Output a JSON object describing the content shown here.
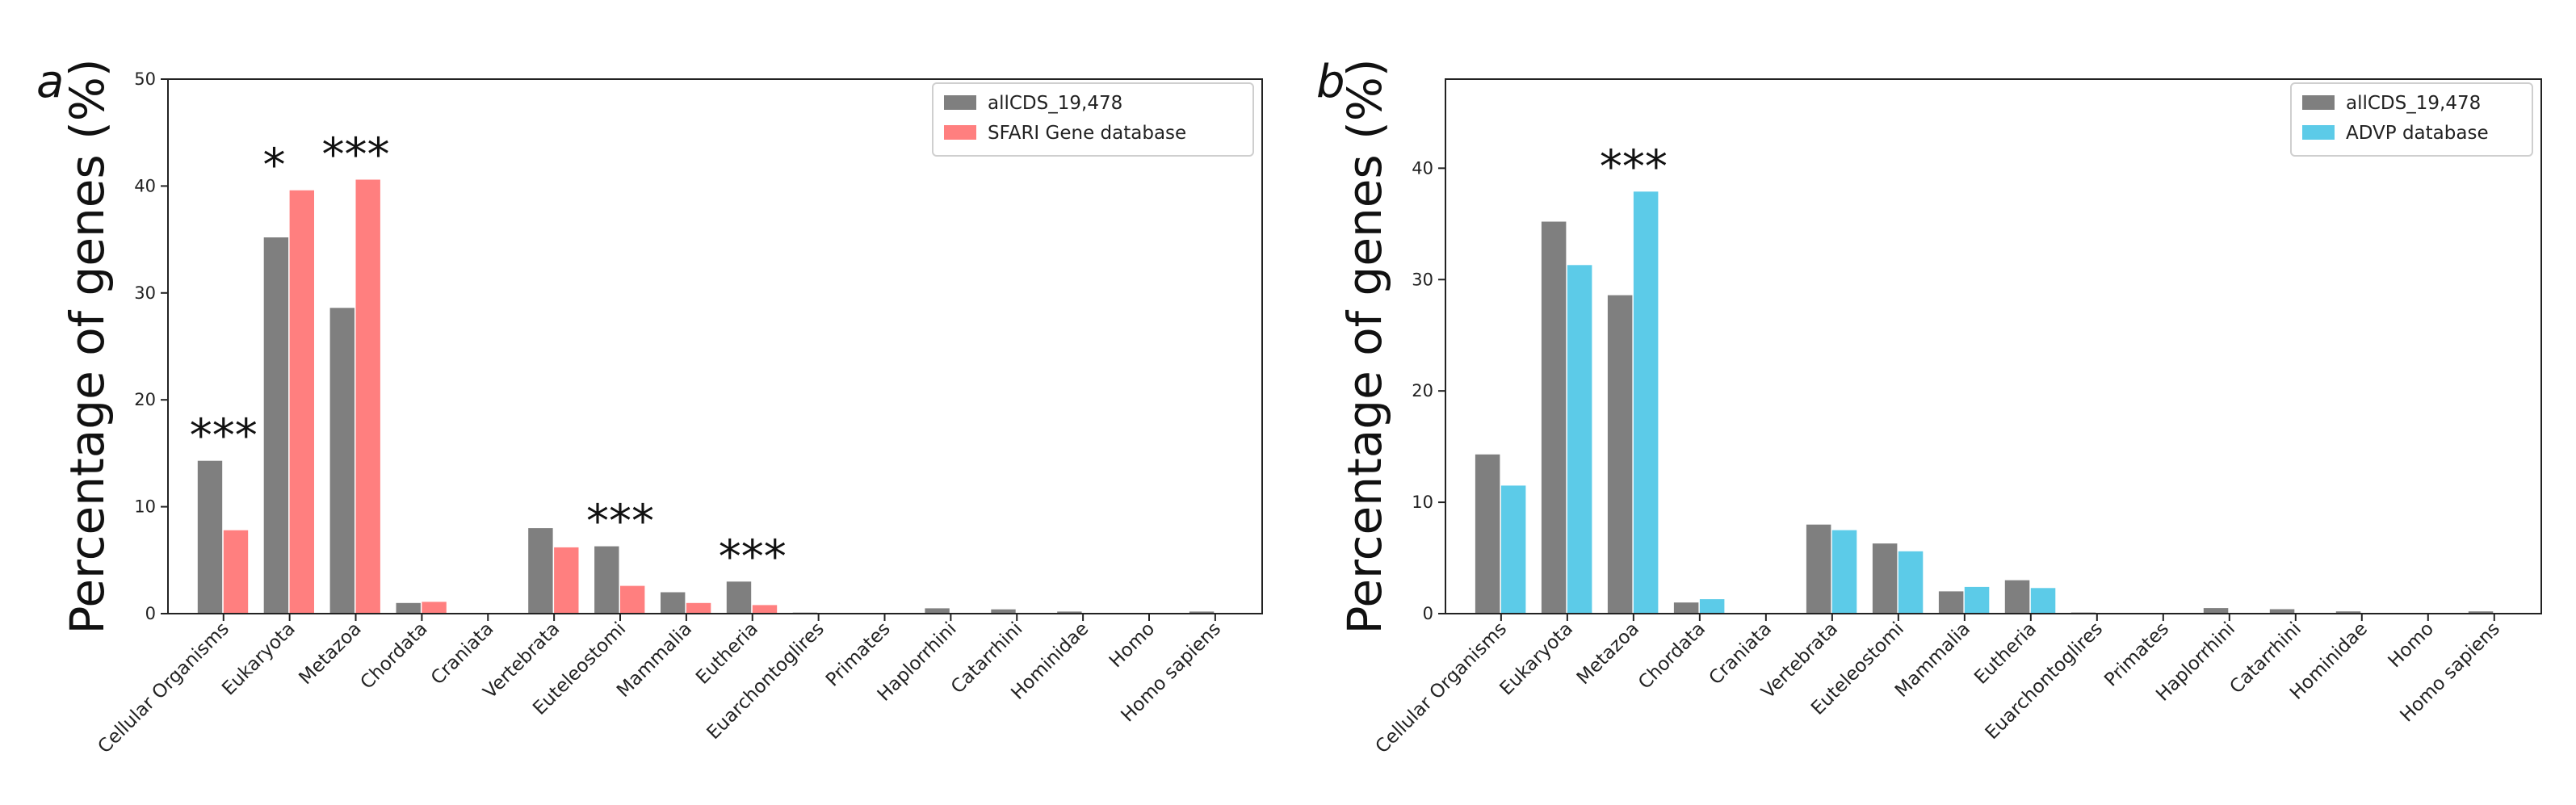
{
  "chart_data": [
    {
      "panel": "a",
      "type": "bar",
      "ylabel": "Percentage of genes (%)",
      "ylim": [
        0,
        50
      ],
      "yticks": [
        "0",
        "10",
        "20",
        "30",
        "40",
        "50"
      ],
      "categories": [
        "Cellular Organisms",
        "Eukaryota",
        "Metazoa",
        "Chordata",
        "Craniata",
        "Vertebrata",
        "Euteleostomi",
        "Mammalia",
        "Eutheria",
        "Euarchontoglires",
        "Primates",
        "Haplorrhini",
        "Catarrhini",
        "Hominidae",
        "Homo",
        "Homo sapiens"
      ],
      "series": [
        {
          "name": "allCDS_19,478",
          "color": "#7f7f7f",
          "values": [
            14.3,
            35.2,
            28.6,
            1.0,
            0.0,
            8.0,
            6.3,
            2.0,
            3.0,
            0.1,
            0.05,
            0.5,
            0.4,
            0.2,
            0.05,
            0.2
          ]
        },
        {
          "name": "SFARI Gene database",
          "color": "#ff7f7f",
          "values": [
            7.8,
            39.6,
            40.6,
            1.1,
            0.0,
            6.2,
            2.6,
            1.0,
            0.8,
            0.0,
            0.0,
            0.0,
            0.0,
            0.0,
            0.0,
            0.0
          ]
        }
      ],
      "annotations": [
        {
          "category": "Cellular Organisms",
          "text": "***"
        },
        {
          "category": "Eukaryota",
          "text": "*"
        },
        {
          "category": "Metazoa",
          "text": "***"
        },
        {
          "category": "Euteleostomi",
          "text": "***"
        },
        {
          "category": "Eutheria",
          "text": "***"
        }
      ],
      "legend": "top-right",
      "grid": false
    },
    {
      "panel": "b",
      "type": "bar",
      "ylabel": "Percentage of genes (%)",
      "ylim": [
        0,
        48
      ],
      "yticks": [
        "0",
        "10",
        "20",
        "30",
        "40"
      ],
      "categories": [
        "Cellular Organisms",
        "Eukaryota",
        "Metazoa",
        "Chordata",
        "Craniata",
        "Vertebrata",
        "Euteleostomi",
        "Mammalia",
        "Eutheria",
        "Euarchontoglires",
        "Primates",
        "Haplorrhini",
        "Catarrhini",
        "Hominidae",
        "Homo",
        "Homo sapiens"
      ],
      "series": [
        {
          "name": "allCDS_19,478",
          "color": "#7f7f7f",
          "values": [
            14.3,
            35.2,
            28.6,
            1.0,
            0.0,
            8.0,
            6.3,
            2.0,
            3.0,
            0.1,
            0.05,
            0.5,
            0.4,
            0.2,
            0.05,
            0.2
          ]
        },
        {
          "name": "ADVP database",
          "color": "#5ccbe8",
          "values": [
            11.5,
            31.3,
            37.9,
            1.3,
            0.0,
            7.5,
            5.6,
            2.4,
            2.3,
            0.0,
            0.0,
            0.0,
            0.0,
            0.0,
            0.0,
            0.0
          ]
        }
      ],
      "annotations": [
        {
          "category": "Metazoa",
          "text": "***"
        }
      ],
      "legend": "top-right",
      "grid": false
    }
  ]
}
